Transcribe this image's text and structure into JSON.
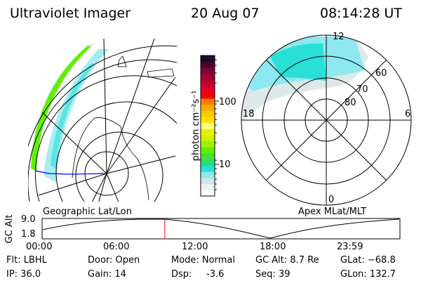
{
  "header": {
    "instrument": "Ultraviolet Imager",
    "date": "20 Aug 07",
    "time": "08:14:28 UT"
  },
  "left_map": {
    "label": "Geographic Lat/Lon"
  },
  "right_map": {
    "label": "Apex MLat/MLT",
    "mlt_labels": [
      "12",
      "18",
      "6",
      "0"
    ],
    "lat_labels": [
      "60",
      "70",
      "80"
    ]
  },
  "colorbar": {
    "unit_label": "photon cm⁻²s⁻¹",
    "tick_labels": [
      "100",
      "10"
    ],
    "colors": [
      "#ffffff",
      "#eaf4ee",
      "#d4e4e2",
      "#8ee8f0",
      "#28e0d8",
      "#28e070",
      "#40e040",
      "#60f000",
      "#a0f000",
      "#d0f000",
      "#e8f000",
      "#ffff80",
      "#ffe000",
      "#ffc800",
      "#ffa800",
      "#ff8000",
      "#ff0000",
      "#e00030",
      "#c00030",
      "#a00030",
      "#800040",
      "#500030",
      "#101030"
    ]
  },
  "timeline": {
    "y_label": "GC Alt",
    "y_ticks": [
      "9.0",
      "1.8"
    ],
    "x_ticks": [
      "00:00",
      "06:00",
      "12:00",
      "18:00",
      "23:59"
    ],
    "current_time_fraction": 0.343
  },
  "status": {
    "flt": "Flt: LBHL",
    "ip": "IP: 36.0",
    "door": "Door: Open",
    "gain": "Gain: 14",
    "mode": "Mode: Normal",
    "dsp": "Dsp:     -3.6",
    "gc_alt": "GC Alt: 8.7 Re",
    "seq": "Seq: 39",
    "glat": "GLat: −68.8",
    "glon": "GLon: 132.7"
  }
}
